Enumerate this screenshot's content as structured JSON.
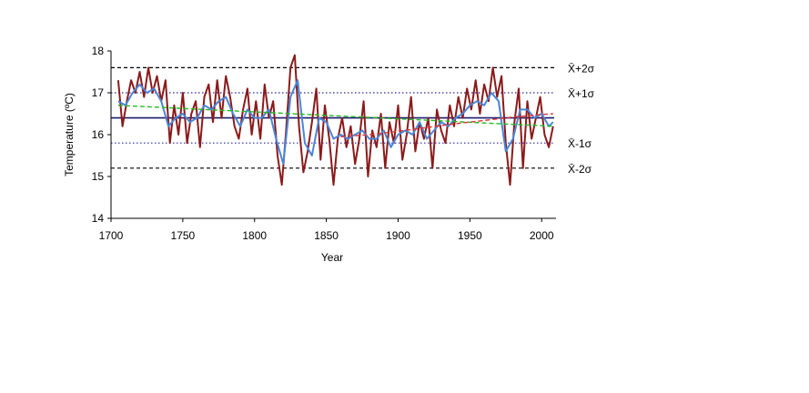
{
  "chart_data": {
    "type": "line",
    "title": "",
    "xlabel": "Year",
    "ylabel": "Temperature (ºC)",
    "xlim": [
      1700,
      2010
    ],
    "ylim": [
      14,
      18
    ],
    "x_ticks": [
      1700,
      1750,
      1800,
      1850,
      1900,
      1950,
      2000
    ],
    "y_ticks": [
      14,
      15,
      16,
      17,
      18
    ],
    "grid": false,
    "legend": "none",
    "reference_lines": [
      {
        "label": "X̄+2σ",
        "value": 17.6,
        "style": "dashed",
        "color": "#000000"
      },
      {
        "label": "X̄+1σ",
        "value": 17.0,
        "style": "dotted",
        "color": "#2a2aa0"
      },
      {
        "label": "",
        "value": 16.4,
        "style": "solid",
        "color": "#1a1a6e"
      },
      {
        "label": "X̄-1σ",
        "value": 15.8,
        "style": "dotted",
        "color": "#2a2aa0"
      },
      {
        "label": "X̄-2σ",
        "value": 15.2,
        "style": "dashed",
        "color": "#000000"
      }
    ],
    "series": [
      {
        "color": "#8b1a1a",
        "x": [
          1705,
          1708,
          1711,
          1714,
          1717,
          1720,
          1723,
          1726,
          1729,
          1732,
          1735,
          1738,
          1741,
          1744,
          1747,
          1750,
          1753,
          1756,
          1759,
          1762,
          1765,
          1768,
          1771,
          1774,
          1777,
          1780,
          1783,
          1786,
          1789,
          1792,
          1795,
          1798,
          1801,
          1804,
          1807,
          1810,
          1813,
          1816,
          1819,
          1822,
          1825,
          1828,
          1831,
          1834,
          1837,
          1840,
          1843,
          1846,
          1849,
          1852,
          1855,
          1858,
          1861,
          1864,
          1867,
          1870,
          1873,
          1876,
          1879,
          1882,
          1885,
          1888,
          1891,
          1894,
          1897,
          1900,
          1903,
          1906,
          1909,
          1912,
          1915,
          1918,
          1921,
          1924,
          1927,
          1930,
          1933,
          1936,
          1939,
          1942,
          1945,
          1948,
          1951,
          1954,
          1957,
          1960,
          1963,
          1966,
          1969,
          1972,
          1975,
          1978,
          1981,
          1984,
          1987,
          1990,
          1993,
          1996,
          1999,
          2002,
          2005,
          2008
        ],
        "values": [
          17.3,
          16.2,
          16.8,
          17.3,
          17.0,
          17.5,
          16.9,
          17.6,
          17.0,
          17.4,
          16.8,
          17.3,
          15.8,
          16.7,
          16.0,
          17.0,
          15.8,
          16.5,
          16.8,
          15.7,
          16.9,
          17.2,
          16.3,
          17.3,
          16.4,
          17.4,
          16.9,
          16.2,
          15.9,
          16.6,
          17.1,
          16.0,
          16.8,
          15.9,
          17.2,
          16.4,
          16.8,
          15.5,
          14.8,
          16.1,
          17.6,
          17.9,
          16.2,
          15.1,
          15.6,
          16.3,
          17.1,
          15.4,
          16.7,
          15.9,
          14.8,
          15.9,
          16.4,
          15.7,
          16.2,
          15.3,
          15.9,
          16.8,
          15.0,
          16.1,
          15.7,
          16.5,
          15.2,
          16.3,
          15.8,
          16.7,
          15.4,
          16.0,
          16.9,
          15.6,
          16.3,
          15.9,
          16.4,
          15.2,
          16.6,
          16.1,
          15.8,
          16.7,
          16.2,
          16.9,
          16.4,
          17.1,
          16.6,
          17.3,
          16.5,
          17.2,
          16.8,
          17.6,
          16.9,
          17.4,
          15.8,
          14.8,
          16.3,
          17.1,
          15.2,
          16.8,
          15.9,
          16.4,
          16.9,
          16.0,
          15.7,
          16.2
        ]
      },
      {
        "color": "#4a86d8",
        "x": [
          1705,
          1710,
          1715,
          1720,
          1725,
          1730,
          1735,
          1740,
          1745,
          1750,
          1755,
          1760,
          1765,
          1770,
          1775,
          1780,
          1785,
          1790,
          1795,
          1800,
          1805,
          1810,
          1815,
          1820,
          1825,
          1830,
          1835,
          1840,
          1845,
          1850,
          1855,
          1860,
          1865,
          1870,
          1875,
          1880,
          1885,
          1890,
          1895,
          1900,
          1905,
          1910,
          1915,
          1920,
          1925,
          1930,
          1935,
          1940,
          1945,
          1950,
          1955,
          1960,
          1965,
          1970,
          1975,
          1980,
          1985,
          1990,
          1995,
          2000,
          2005,
          2008
        ],
        "values": [
          16.8,
          16.7,
          17.0,
          17.2,
          17.0,
          17.1,
          16.8,
          16.2,
          16.4,
          16.5,
          16.3,
          16.4,
          16.7,
          16.6,
          16.8,
          16.9,
          16.5,
          16.2,
          16.6,
          16.4,
          16.4,
          16.6,
          15.9,
          15.3,
          16.9,
          17.3,
          15.8,
          15.5,
          16.4,
          16.3,
          15.9,
          16.0,
          15.9,
          16.0,
          16.1,
          15.9,
          15.9,
          16.1,
          15.7,
          16.0,
          16.1,
          16.0,
          16.3,
          15.9,
          16.1,
          16.3,
          16.2,
          16.4,
          16.5,
          16.7,
          16.8,
          16.7,
          17.0,
          16.8,
          15.6,
          15.9,
          16.6,
          16.6,
          16.4,
          16.5,
          16.2,
          16.3
        ]
      },
      {
        "color": "#22bb22",
        "style": "dashed",
        "x": [
          1705,
          2008
        ],
        "values": [
          16.7,
          16.2
        ]
      },
      {
        "color": "#dd3333",
        "style": "dashed",
        "x": [
          1860,
          1880,
          1900,
          1920,
          1940,
          1960,
          1980,
          2000,
          2008
        ],
        "values": [
          15.95,
          16.0,
          16.08,
          16.17,
          16.26,
          16.34,
          16.42,
          16.48,
          16.5
        ]
      }
    ]
  }
}
